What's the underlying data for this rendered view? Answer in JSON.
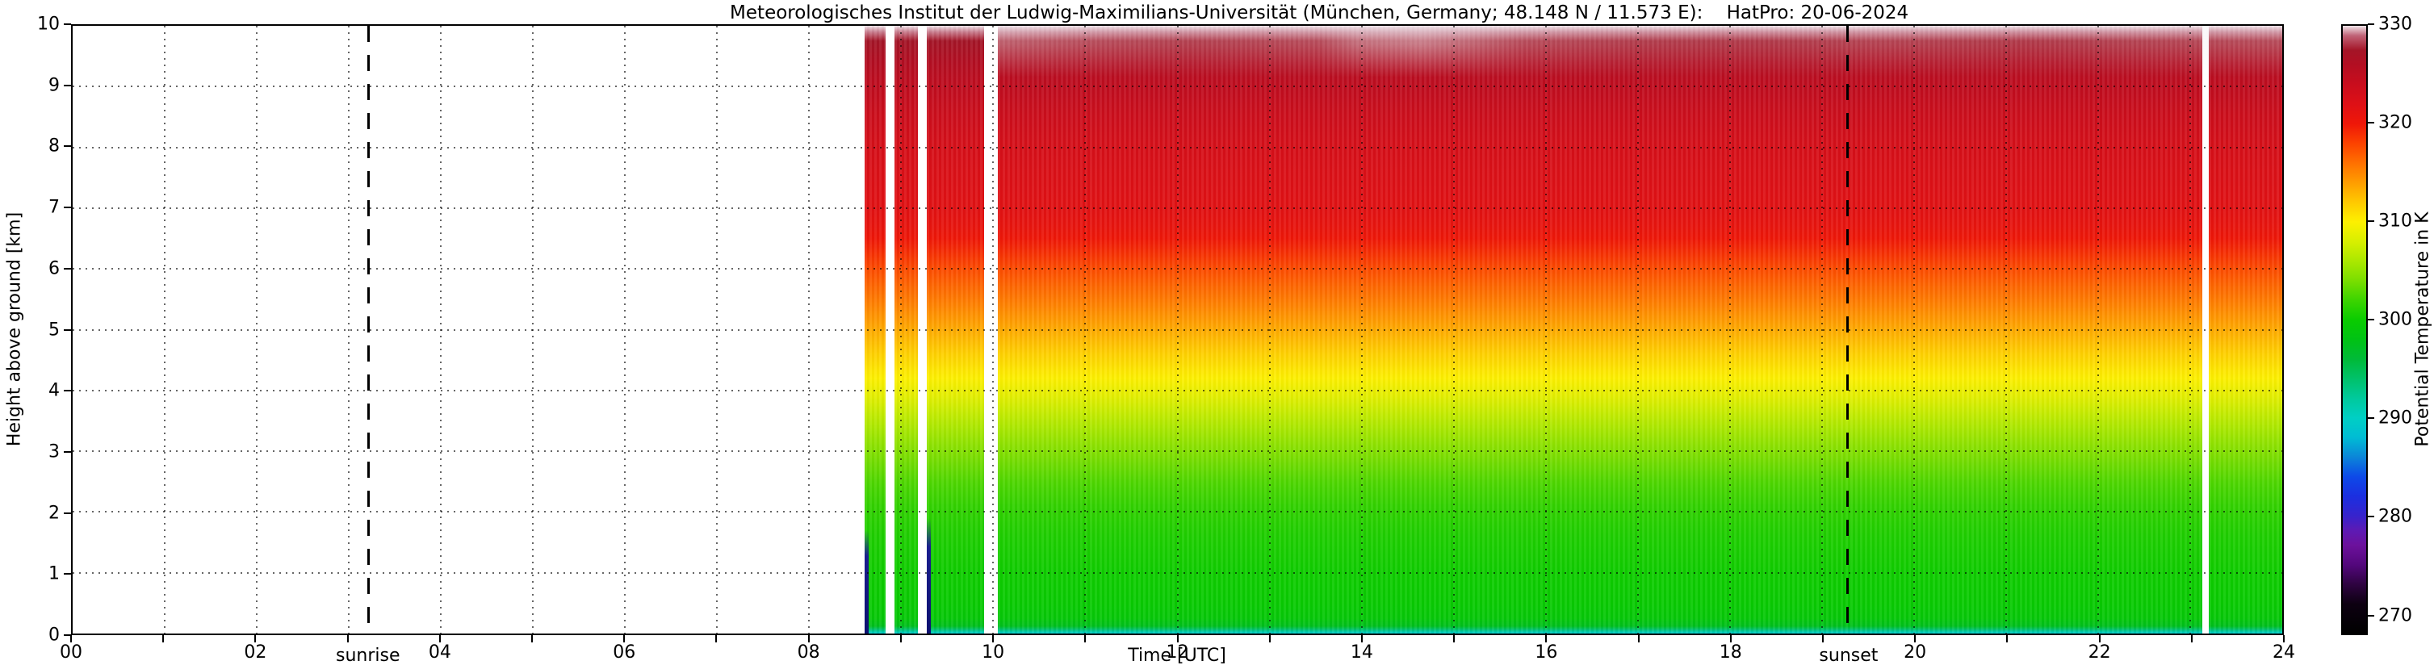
{
  "title": "Meteorologisches Institut der Ludwig-Maximilians-Universität (München, Germany; 48.148 N / 11.573 E):    HatPro: 20-06-2024",
  "axes": {
    "x": {
      "label": "Time [UTC]",
      "min": 0,
      "max": 24,
      "tick_labels": [
        "00",
        "02",
        "04",
        "06",
        "08",
        "10",
        "12",
        "14",
        "16",
        "18",
        "20",
        "22",
        "24"
      ]
    },
    "y": {
      "label": "Height above ground [km]",
      "min": 0,
      "max": 10,
      "tick_labels": [
        "0",
        "1",
        "2",
        "3",
        "4",
        "5",
        "6",
        "7",
        "8",
        "9",
        "10"
      ]
    }
  },
  "colorbar": {
    "label": "Potential Temperature in K",
    "min": 268,
    "max": 330,
    "tick_values": [
      270,
      280,
      290,
      300,
      310,
      320,
      330
    ],
    "stops": [
      [
        268,
        "#000000"
      ],
      [
        271,
        "#0d0011"
      ],
      [
        273,
        "#2e0340"
      ],
      [
        275,
        "#53077c"
      ],
      [
        277,
        "#6c119c"
      ],
      [
        278.5,
        "#5d1ab4"
      ],
      [
        280,
        "#3723cc"
      ],
      [
        282,
        "#1b2fe0"
      ],
      [
        284,
        "#0d49e8"
      ],
      [
        286,
        "#0b85d8"
      ],
      [
        288,
        "#00bcd4"
      ],
      [
        290,
        "#00cfc4"
      ],
      [
        292,
        "#00c99c"
      ],
      [
        294,
        "#00c16a"
      ],
      [
        296,
        "#00ba38"
      ],
      [
        298,
        "#00c214"
      ],
      [
        300,
        "#0acc00"
      ],
      [
        302,
        "#3cd400"
      ],
      [
        304,
        "#7ade00"
      ],
      [
        306,
        "#abe800"
      ],
      [
        308,
        "#d8ef00"
      ],
      [
        310,
        "#fdf000"
      ],
      [
        312,
        "#ffc900"
      ],
      [
        314,
        "#ff9d00"
      ],
      [
        316,
        "#ff7000"
      ],
      [
        318,
        "#fc4200"
      ],
      [
        320,
        "#ef1708"
      ],
      [
        322,
        "#de1016"
      ],
      [
        324,
        "#c90d1d"
      ],
      [
        326,
        "#b30e22"
      ],
      [
        327.5,
        "#a41527"
      ],
      [
        329,
        "#c06377"
      ],
      [
        330,
        "#efe3e8"
      ]
    ]
  },
  "annotations": {
    "sunrise": {
      "label": "sunrise",
      "time_utc": 3.22
    },
    "sunset": {
      "label": "sunset",
      "time_utc": 19.28
    }
  },
  "chart_data": {
    "type": "heatmap",
    "title": "Meteorologisches Institut der Ludwig-Maximilians-Universität (München, Germany; 48.148 N / 11.573 E):    HatPro: 20-06-2024",
    "instrument": "HatPro",
    "date": "20-06-2024",
    "xlabel": "Time [UTC]",
    "ylabel": "Height above ground [km]",
    "xlim": [
      0,
      24
    ],
    "ylim": [
      0,
      10
    ],
    "colorbar_label": "Potential Temperature in K",
    "colorbar_ticks": [
      270,
      280,
      290,
      300,
      310,
      320,
      330
    ],
    "value_range_K": [
      270,
      330
    ],
    "grid": "dotted gridlines at every hour (x) and every 1 km (y)",
    "no_data_color": "#ffffff",
    "sunrise_utc": 3.22,
    "sunset_utc": 19.28,
    "data_segments_utc": [
      [
        8.6,
        8.83
      ],
      [
        8.93,
        9.18
      ],
      [
        9.28,
        9.9
      ],
      [
        10.05,
        23.13
      ],
      [
        23.2,
        24.0
      ]
    ],
    "vertical_profile_K_by_height_km": [
      [
        0,
        289.5
      ],
      [
        0.02,
        290.5
      ],
      [
        0.06,
        293.5
      ],
      [
        0.12,
        297.5
      ],
      [
        0.25,
        299.2
      ],
      [
        0.5,
        299.8
      ],
      [
        1,
        300.2
      ],
      [
        1.6,
        300.8
      ],
      [
        2.1,
        301.6
      ],
      [
        2.5,
        302.6
      ],
      [
        2.9,
        304
      ],
      [
        3.2,
        305.2
      ],
      [
        3.6,
        307
      ],
      [
        3.9,
        308.6
      ],
      [
        4.2,
        310
      ],
      [
        4.6,
        311.6
      ],
      [
        5,
        313.4
      ],
      [
        5.4,
        315.2
      ],
      [
        5.7,
        316.4
      ],
      [
        6,
        317.6
      ],
      [
        6.2,
        318.6
      ],
      [
        6.5,
        320
      ],
      [
        6.7,
        320.8
      ],
      [
        7,
        321.6
      ],
      [
        7.5,
        322.2
      ],
      [
        8,
        322.8
      ],
      [
        8.5,
        323.6
      ],
      [
        9,
        324.8
      ],
      [
        9.4,
        326
      ],
      [
        9.75,
        327.5
      ],
      [
        9.9,
        329.2
      ],
      [
        10,
        330
      ]
    ],
    "cold_artifacts": [
      {
        "time_utc": 8.6,
        "top_km": 1.7
      },
      {
        "time_utc": 9.28,
        "top_km": 1.9
      }
    ],
    "top_haze_band": {
      "start_utc": 10.05,
      "end_utc": 24,
      "depth_frac": 0.085,
      "stops_pct_alpha": [
        [
          0,
          0.42
        ],
        [
          8,
          0.3
        ],
        [
          15,
          0.24
        ],
        [
          25,
          0.3
        ],
        [
          28,
          0.5
        ],
        [
          33,
          0.58
        ],
        [
          37,
          0.45
        ],
        [
          41,
          0.3
        ],
        [
          50,
          0.22
        ],
        [
          60,
          0.2
        ],
        [
          68,
          0.26
        ],
        [
          80,
          0.2
        ],
        [
          90,
          0.26
        ],
        [
          100,
          0.3
        ]
      ]
    }
  }
}
